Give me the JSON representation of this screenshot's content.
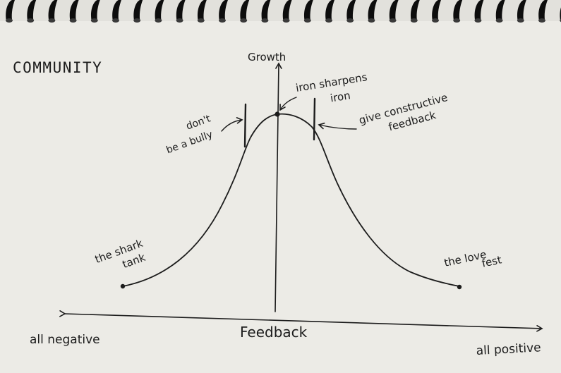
{
  "notebook": {
    "title": "COMMUNITY"
  },
  "diagram": {
    "y_axis_label": "Growth",
    "x_axis_label": "Feedback",
    "x_left_label": "all negative",
    "x_right_label": "all positive",
    "annotations": {
      "peak_line1": "iron sharpens",
      "peak_line2": "iron",
      "left_warning_line1": "don't",
      "left_warning_line2": "be a bully",
      "right_warning_line1": "give constructive",
      "right_warning_line2": "feedback",
      "left_end_line1": "the shark",
      "left_end_line2": "tank",
      "right_end_line1": "the love",
      "right_end_line2": "fest"
    }
  },
  "colors": {
    "paper": "#ecebe6",
    "ink": "#1c1c1c",
    "spiral": "#0d0d0d"
  }
}
